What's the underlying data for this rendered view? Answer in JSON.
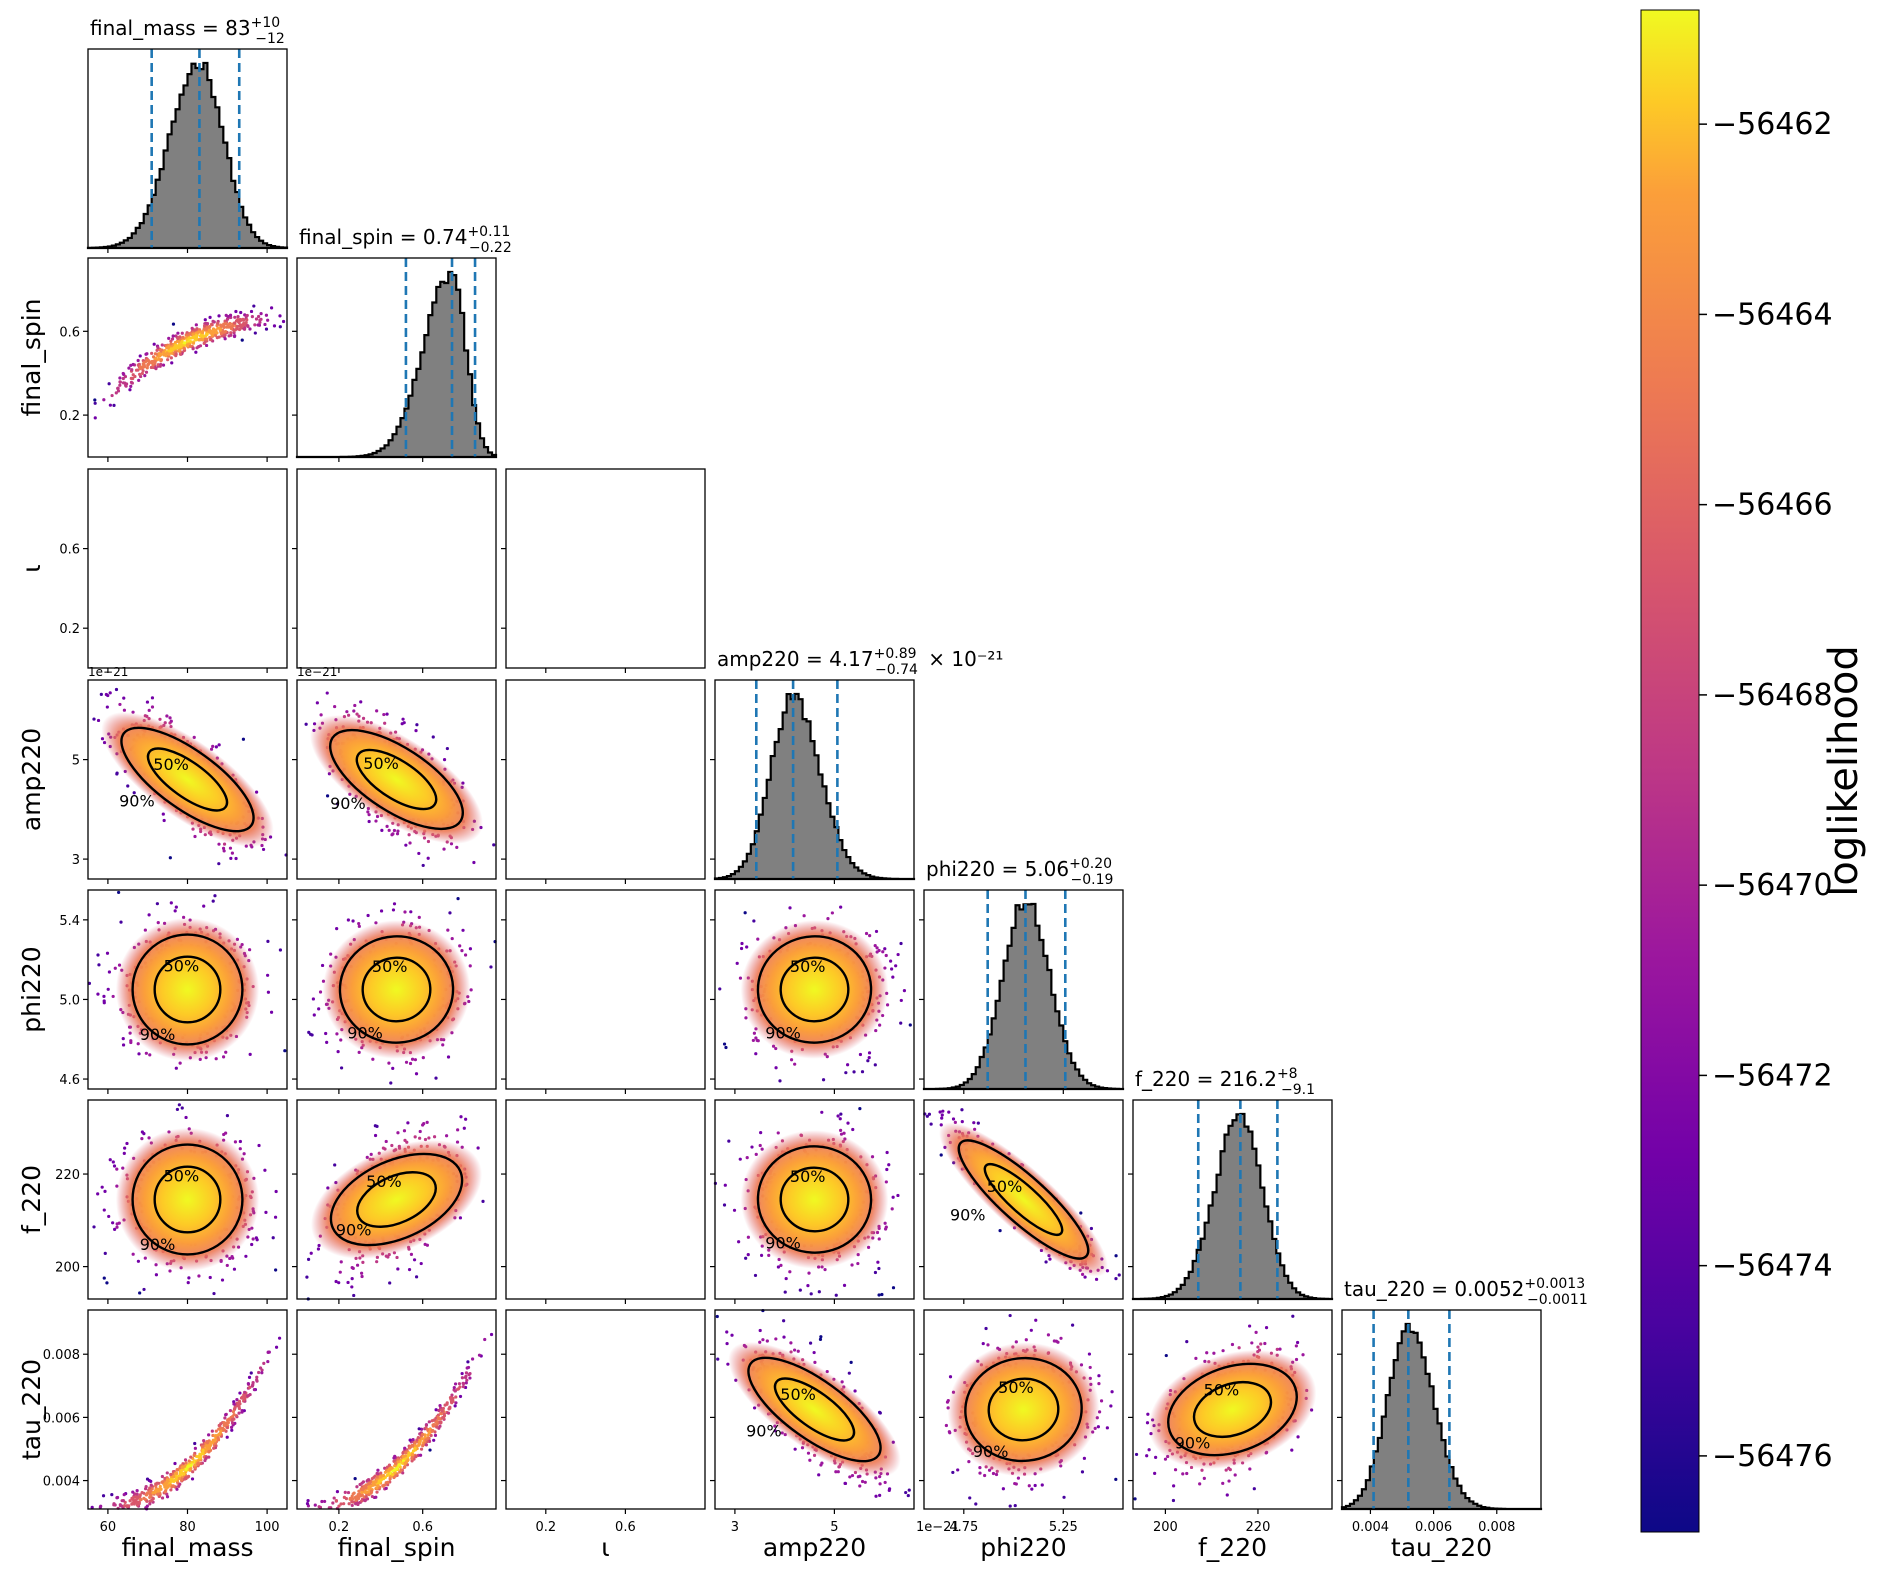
{
  "chart_data": {
    "type": "corner",
    "params": [
      {
        "key": "final_mass",
        "label": "final_mass",
        "range": [
          55,
          105
        ],
        "ticks": [
          {
            "v": 60,
            "t": "60"
          },
          {
            "v": 80,
            "t": "80"
          },
          {
            "v": 100,
            "t": "100"
          }
        ],
        "median": 83,
        "lo": 71,
        "hi": 93,
        "title_name": "final_mass",
        "title_median": "83",
        "title_plus": "+10",
        "title_minus": "−12",
        "title_scale": ""
      },
      {
        "key": "final_spin",
        "label": "final_spin",
        "range": [
          0.0,
          0.95
        ],
        "ticks": [
          {
            "v": 0.2,
            "t": "0.2"
          },
          {
            "v": 0.6,
            "t": "0.6"
          }
        ],
        "median": 0.74,
        "lo": 0.52,
        "hi": 0.85,
        "title_name": "final_spin",
        "title_median": "0.74",
        "title_plus": "+0.11",
        "title_minus": "−0.22",
        "title_scale": ""
      },
      {
        "key": "iota",
        "label": "ι",
        "range": [
          0.0,
          1.0
        ],
        "ticks": [
          {
            "v": 0.2,
            "t": "0.2"
          },
          {
            "v": 0.6,
            "t": "0.6"
          }
        ],
        "median": null,
        "title_name": "",
        "title_median": "",
        "title_plus": "",
        "title_minus": "",
        "title_scale": ""
      },
      {
        "key": "amp220",
        "label": "amp220",
        "range": [
          2.6,
          6.6
        ],
        "ticks": [
          {
            "v": 3,
            "t": "3"
          },
          {
            "v": 5,
            "t": "5"
          }
        ],
        "median": 4.17,
        "lo": 3.43,
        "hi": 5.06,
        "offset_text": "1e−21",
        "title_name": "amp220",
        "title_median": "4.17",
        "title_plus": "+0.89",
        "title_minus": "−0.74",
        "title_scale": "× 10⁻²¹"
      },
      {
        "key": "phi220",
        "label": "phi220",
        "range": [
          4.55,
          5.55
        ],
        "ticks": [
          {
            "v": 4.6,
            "t": "4.6"
          },
          {
            "v": 5.0,
            "t": "5.0"
          },
          {
            "v": 5.4,
            "t": "5.4"
          }
        ],
        "xticks": [
          {
            "v": 4.75,
            "t": "4.75"
          },
          {
            "v": 5.25,
            "t": "5.25"
          }
        ],
        "median": 5.06,
        "lo": 4.87,
        "hi": 5.26,
        "title_name": "phi220",
        "title_median": "5.06",
        "title_plus": "+0.20",
        "title_minus": "−0.19",
        "title_scale": ""
      },
      {
        "key": "f_220",
        "label": "f_220",
        "range": [
          193,
          236
        ],
        "ticks": [
          {
            "v": 200,
            "t": "200"
          },
          {
            "v": 220,
            "t": "220"
          }
        ],
        "median": 216.2,
        "lo": 207.1,
        "hi": 224.2,
        "title_name": "f_220",
        "title_median": "216.2",
        "title_plus": "+8",
        "title_minus": "−9.1",
        "title_scale": ""
      },
      {
        "key": "tau_220",
        "label": "tau_220",
        "range": [
          0.0031,
          0.0094
        ],
        "ticks": [
          {
            "v": 0.004,
            "t": "0.004"
          },
          {
            "v": 0.006,
            "t": "0.006"
          },
          {
            "v": 0.008,
            "t": "0.008"
          }
        ],
        "median": 0.0052,
        "lo": 0.0041,
        "hi": 0.0065,
        "title_name": "tau_220",
        "title_median": "0.0052",
        "title_plus": "+0.0013",
        "title_minus": "−0.0011",
        "title_scale": ""
      }
    ],
    "correlations": {
      "1,0": 0.95,
      "3,0": -0.72,
      "3,1": -0.65,
      "4,0": 0.0,
      "4,1": 0.05,
      "4,3": 0.05,
      "5,0": 0.0,
      "5,1": 0.45,
      "5,3": -0.05,
      "5,4": -0.9,
      "6,0": 0.99,
      "6,1": 0.95,
      "6,3": -0.72,
      "6,4": 0.1,
      "6,5": 0.35
    },
    "contour_labels": [
      "50%",
      "90%"
    ],
    "colorbar": {
      "label": "loglikelihood",
      "min": -56476.8,
      "max": -56460.8,
      "ticks": [
        {
          "v": -56462,
          "t": "−56462"
        },
        {
          "v": -56464,
          "t": "−56464"
        },
        {
          "v": -56466,
          "t": "−56466"
        },
        {
          "v": -56468,
          "t": "−56468"
        },
        {
          "v": -56470,
          "t": "−56470"
        },
        {
          "v": -56472,
          "t": "−56472"
        },
        {
          "v": -56474,
          "t": "−56474"
        },
        {
          "v": -56476,
          "t": "−56476"
        }
      ],
      "colormap": "plasma"
    },
    "colors": {
      "hist_fill": "#808080",
      "quantile_line": "#1f77b4",
      "contour": "#000000"
    }
  }
}
